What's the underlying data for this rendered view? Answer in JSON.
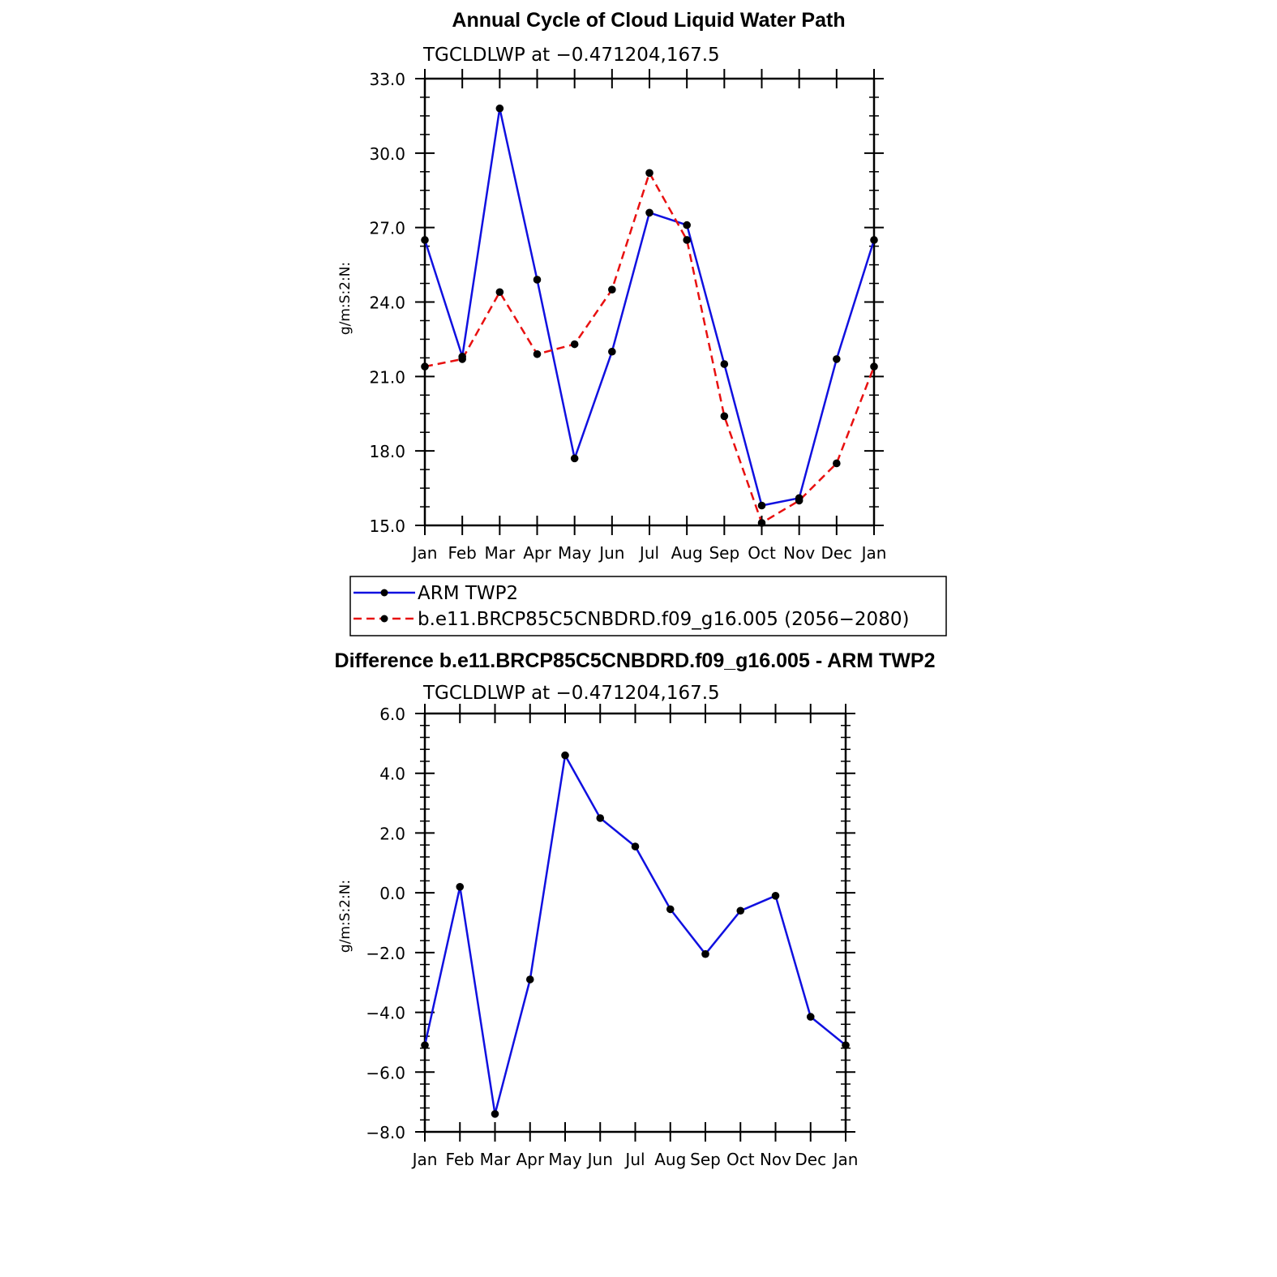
{
  "colors": {
    "series_obs": "#1010e0",
    "series_model": "#e81010",
    "marker": "#000000"
  },
  "chart_data": [
    {
      "type": "line",
      "title": "Annual Cycle of Cloud Liquid Water Path",
      "subtitle": "TGCLDLWP at −0.471204,167.5",
      "ylabel": "g/m:S:2:N:",
      "xlabel": "",
      "ylim": [
        15,
        33
      ],
      "yticks": [
        "33.0",
        "30.0",
        "27.0",
        "24.0",
        "21.0",
        "18.0",
        "15.0"
      ],
      "ytick_values": [
        33,
        30,
        27,
        24,
        21,
        18,
        15
      ],
      "categories": [
        "Jan",
        "Feb",
        "Mar",
        "Apr",
        "May",
        "Jun",
        "Jul",
        "Aug",
        "Sep",
        "Oct",
        "Nov",
        "Dec",
        "Jan"
      ],
      "series": [
        {
          "name": "ARM TWP2",
          "style": "solid",
          "color_key": "series_obs",
          "values": [
            26.5,
            21.8,
            31.8,
            24.9,
            17.7,
            22.0,
            27.6,
            27.1,
            21.5,
            15.8,
            16.1,
            21.7,
            26.5
          ]
        },
        {
          "name": "b.e11.BRCP85C5CNBDRD.f09_g16.005 (2056−2080)",
          "style": "dashed",
          "color_key": "series_model",
          "values": [
            21.4,
            21.7,
            24.4,
            21.9,
            22.3,
            24.5,
            29.2,
            26.5,
            19.4,
            15.1,
            16.0,
            17.5,
            21.4
          ]
        }
      ],
      "legend": {
        "position": "below",
        "entries": [
          "ARM TWP2",
          "b.e11.BRCP85C5CNBDRD.f09_g16.005 (2056−2080)"
        ]
      }
    },
    {
      "type": "line",
      "title": "Difference b.e11.BRCP85C5CNBDRD.f09_g16.005 - ARM TWP2",
      "subtitle": "TGCLDLWP at −0.471204,167.5",
      "ylabel": "g/m:S:2:N:",
      "xlabel": "",
      "ylim": [
        -8,
        6
      ],
      "yticks": [
        "6.0",
        "4.0",
        "2.0",
        "0.0",
        "−2.0",
        "−4.0",
        "−6.0",
        "−8.0"
      ],
      "ytick_values": [
        6,
        4,
        2,
        0,
        -2,
        -4,
        -6,
        -8
      ],
      "categories": [
        "Jan",
        "Feb",
        "Mar",
        "Apr",
        "May",
        "Jun",
        "Jul",
        "Aug",
        "Sep",
        "Oct",
        "Nov",
        "Dec",
        "Jan"
      ],
      "series": [
        {
          "name": "Difference",
          "style": "solid",
          "color_key": "series_obs",
          "values": [
            -5.1,
            0.2,
            -7.4,
            -2.9,
            4.6,
            2.5,
            1.55,
            -0.55,
            -2.05,
            -0.6,
            -0.1,
            -4.15,
            -5.1
          ]
        }
      ]
    }
  ]
}
